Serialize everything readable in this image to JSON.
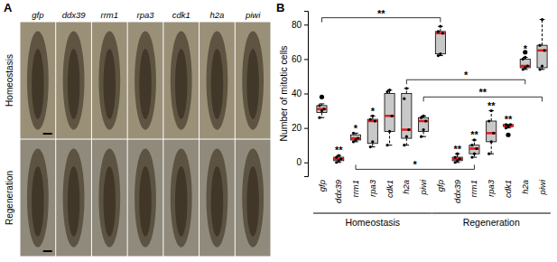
{
  "panel_a": {
    "label": "A",
    "columns": [
      "gfp",
      "ddx39",
      "rrm1",
      "rpa3",
      "cdk1",
      "h2a",
      "piwi"
    ],
    "rows": [
      "Homeostasis",
      "Regeneration"
    ]
  },
  "chart_data": {
    "type": "box",
    "title": "B",
    "y_label": "Number of mitotic cells",
    "categories": [
      "gfp",
      "ddx39",
      "rrm1",
      "rpa3",
      "cdk1",
      "h2a",
      "piwi",
      "gfp",
      "ddx39",
      "rrm1",
      "rpa3",
      "cdk1",
      "h2a",
      "piwi"
    ],
    "groups": [
      {
        "label": "Homeostasis",
        "start": 0,
        "end": 6
      },
      {
        "label": "Regeneration",
        "start": 7,
        "end": 13
      }
    ],
    "color": "#c8c8c8",
    "ylim": [
      -8,
      88
    ],
    "yticks": [
      0,
      20,
      40,
      60,
      80
    ],
    "boxes": [
      {
        "min": 26,
        "q1": 29,
        "median": 31,
        "q3": 33,
        "max": 34,
        "outliers": [
          38
        ],
        "points": [
          26,
          30,
          31,
          33
        ]
      },
      {
        "min": 0,
        "q1": 1,
        "median": 2,
        "q3": 3,
        "max": 4,
        "outliers": [],
        "points": [
          0,
          1,
          2,
          3,
          4
        ]
      },
      {
        "min": 12,
        "q1": 13,
        "median": 14,
        "q3": 16,
        "max": 17,
        "outliers": [],
        "points": [
          12,
          13,
          14,
          17
        ]
      },
      {
        "min": 9,
        "q1": 11,
        "median": 24,
        "q3": 25,
        "max": 27,
        "outliers": [],
        "points": [
          9,
          12,
          24,
          25,
          27
        ]
      },
      {
        "min": 10,
        "q1": 18,
        "median": 27,
        "q3": 40,
        "max": 42,
        "outliers": [],
        "points": [
          10,
          18,
          27,
          41,
          42
        ]
      },
      {
        "min": 10,
        "q1": 14,
        "median": 19,
        "q3": 40,
        "max": 43,
        "outliers": [],
        "points": [
          10,
          15,
          19,
          37,
          43
        ]
      },
      {
        "min": 15,
        "q1": 18,
        "median": 24,
        "q3": 26,
        "max": 27,
        "outliers": [],
        "points": [
          15,
          19,
          24,
          26,
          27
        ]
      },
      {
        "min": 62,
        "q1": 63,
        "median": 75,
        "q3": 76,
        "max": 79,
        "outliers": [],
        "points": [
          62,
          63,
          75,
          76,
          79
        ]
      },
      {
        "min": 0,
        "q1": 1,
        "median": 2,
        "q3": 3,
        "max": 5,
        "outliers": [],
        "points": [
          0,
          1,
          2,
          3,
          5
        ]
      },
      {
        "min": 3,
        "q1": 5,
        "median": 8,
        "q3": 10,
        "max": 13,
        "outliers": [],
        "points": [
          3,
          5,
          8,
          10,
          13
        ]
      },
      {
        "min": 5,
        "q1": 12,
        "median": 17,
        "q3": 24,
        "max": 30,
        "outliers": [],
        "points": [
          5,
          12,
          17,
          24,
          30
        ]
      },
      {
        "min": 20,
        "q1": 21,
        "median": 21,
        "q3": 22,
        "max": 22,
        "outliers": [
          16
        ],
        "points": [
          20,
          21,
          22,
          22
        ]
      },
      {
        "min": 54,
        "q1": 55,
        "median": 56,
        "q3": 60,
        "max": 61,
        "outliers": [
          64
        ],
        "points": [
          54,
          55,
          56,
          60,
          61
        ]
      },
      {
        "min": 54,
        "q1": 55,
        "median": 65,
        "q3": 68,
        "max": 83,
        "outliers": [],
        "points": [
          54,
          56,
          65,
          68,
          83
        ]
      }
    ],
    "annotations": [
      {
        "index": 1,
        "y": 7,
        "text": "**"
      },
      {
        "index": 2,
        "y": 20,
        "text": "*"
      },
      {
        "index": 3,
        "y": 30,
        "text": "*"
      },
      {
        "index": 8,
        "y": 8,
        "text": "**"
      },
      {
        "index": 9,
        "y": 16,
        "text": "**"
      },
      {
        "index": 10,
        "y": 33,
        "text": "**"
      },
      {
        "index": 11,
        "y": 25,
        "text": "**"
      },
      {
        "index": 12,
        "y": 66,
        "text": "*"
      }
    ],
    "brackets": [
      {
        "from": 0,
        "to": 7,
        "y": 84,
        "text": "**"
      },
      {
        "from": 5,
        "to": 12,
        "y": 48,
        "text": "*"
      },
      {
        "from": 6,
        "to": 13,
        "y": 38,
        "text": "**"
      },
      {
        "from": 2,
        "to": 9,
        "y": -4,
        "text": "*"
      }
    ]
  }
}
